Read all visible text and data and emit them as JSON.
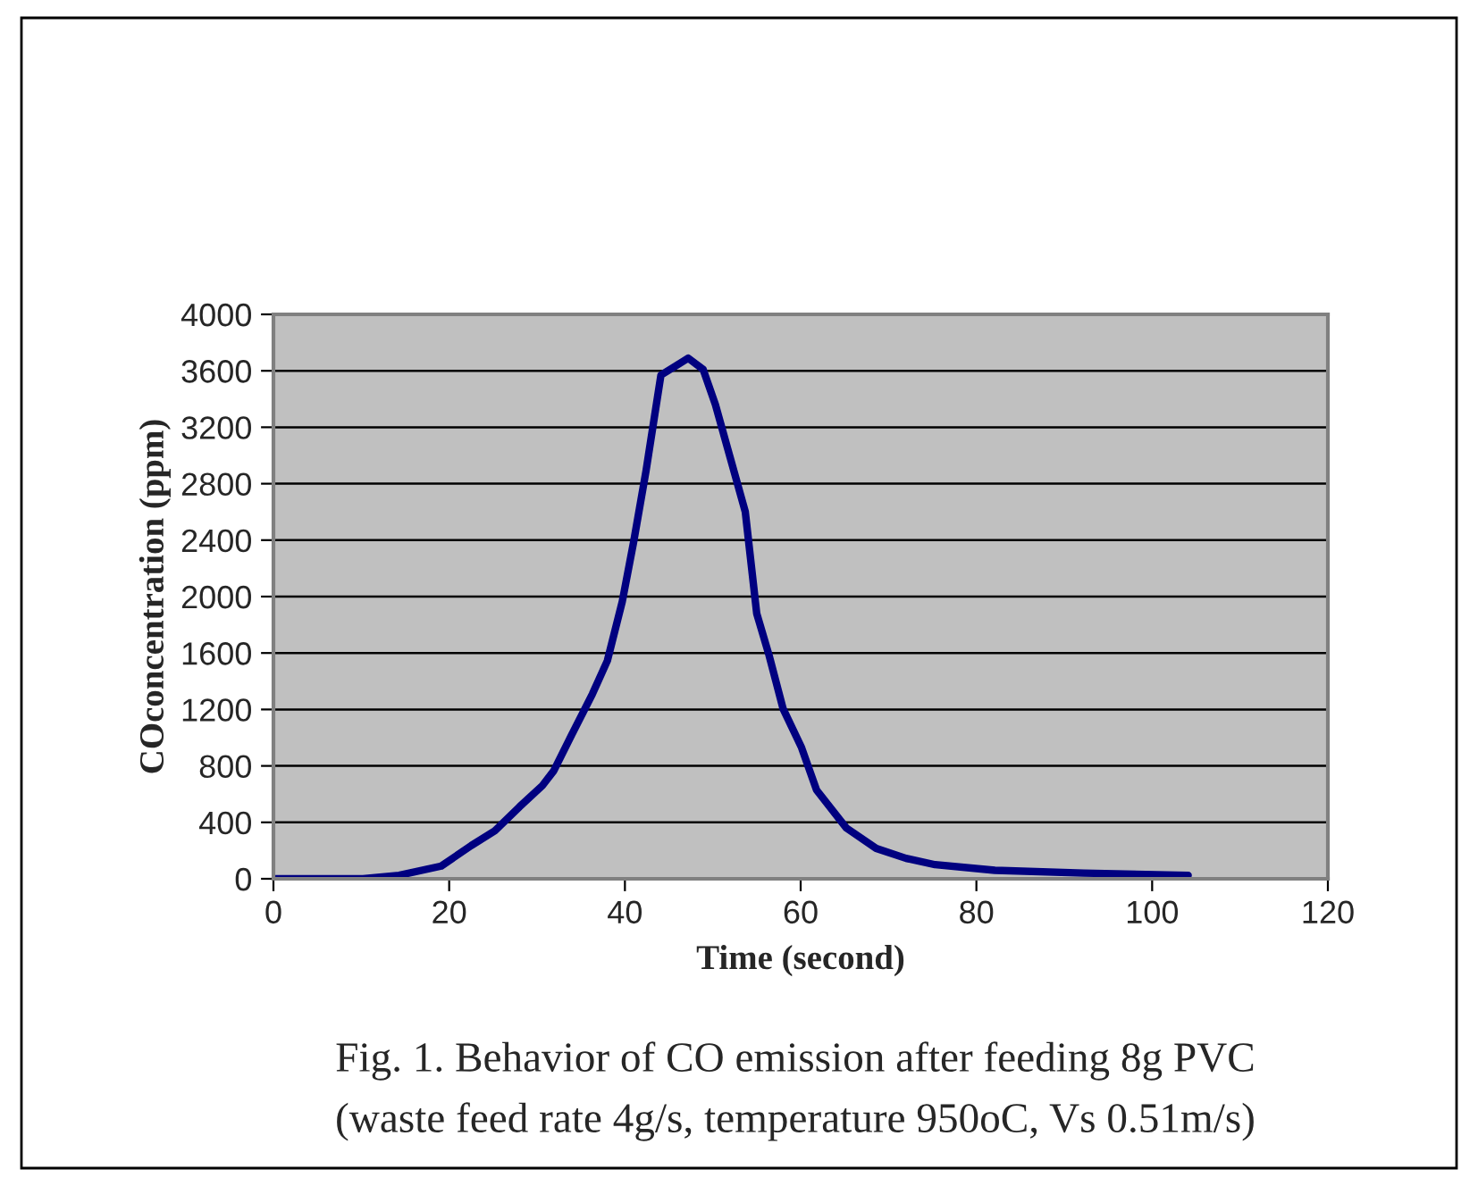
{
  "chart_data": {
    "type": "line",
    "xlabel": "Time (second)",
    "ylabel": "COconcentration (ppm)",
    "annotations": [
      "Fig. 1. Behavior of CO emission after feeding 8g PVC",
      "(waste feed rate 4g/s, temperature 950oC, Vs 0.51m/s)"
    ],
    "x": [
      0,
      10.2,
      14.3,
      19.1,
      22.5,
      25.2,
      28,
      30.6,
      31.9,
      33.9,
      36.3,
      38,
      39.7,
      41,
      42.4,
      44.1,
      47.2,
      48.9,
      50.3,
      52,
      53.7,
      55,
      56.4,
      58,
      60.1,
      61.8,
      65.2,
      68.6,
      72,
      75.3,
      82.1,
      92.2,
      104.1
    ],
    "series": [
      {
        "color": "#000080",
        "values": [
          0,
          0,
          25,
          90,
          235,
          340,
          510,
          660,
          765,
          1015,
          1310,
          1545,
          1965,
          2390,
          2890,
          3570,
          3690,
          3610,
          3360,
          2980,
          2600,
          1880,
          1585,
          1205,
          930,
          630,
          360,
          215,
          145,
          100,
          60,
          40,
          25
        ]
      }
    ],
    "xlim": [
      0,
      120
    ],
    "xticks": [
      0,
      20,
      40,
      60,
      80,
      100,
      120
    ],
    "ylim": [
      0,
      4000
    ],
    "yticks": [
      0,
      400,
      800,
      1200,
      1600,
      2000,
      2400,
      2800,
      3200,
      3600,
      4000
    ],
    "grid": "y",
    "line_style": "solid",
    "marker": "none",
    "legend": false
  }
}
